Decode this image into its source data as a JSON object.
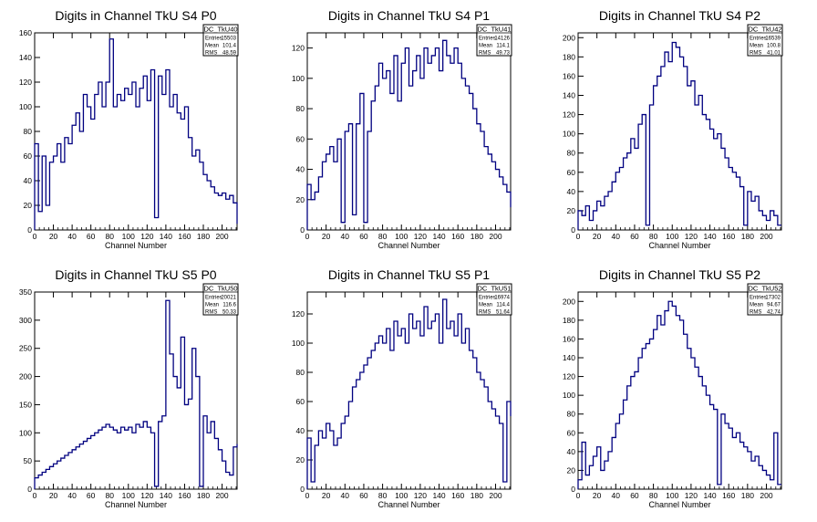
{
  "page": {
    "background": "#ffffff",
    "line_color": "#000080"
  },
  "chart_data": [
    {
      "type": "line",
      "title": "Digits in Channel TkU S4 P0",
      "xlabel": "Channel Number",
      "ylabel": "",
      "xlim": [
        0,
        216
      ],
      "ylim": [
        0,
        160
      ],
      "xticks": [
        0,
        20,
        40,
        60,
        80,
        100,
        120,
        140,
        160,
        180,
        200
      ],
      "yticks": [
        0,
        20,
        40,
        60,
        80,
        100,
        120,
        140,
        160
      ],
      "stats": {
        "name": "DC_TkU40",
        "entries_label": "Entries",
        "entries": "15503",
        "mean_label": "Mean",
        "mean": "101.4",
        "rms_label": "RMS",
        "rms": "48.59"
      },
      "x": [
        0,
        4,
        8,
        12,
        16,
        20,
        24,
        28,
        32,
        36,
        40,
        44,
        48,
        52,
        56,
        60,
        64,
        68,
        72,
        76,
        80,
        84,
        88,
        92,
        96,
        100,
        104,
        108,
        112,
        116,
        120,
        124,
        128,
        132,
        136,
        140,
        144,
        148,
        152,
        156,
        160,
        164,
        168,
        172,
        176,
        180,
        184,
        188,
        192,
        196,
        200,
        204,
        208,
        212,
        216
      ],
      "y": [
        70,
        15,
        60,
        20,
        55,
        60,
        70,
        55,
        75,
        70,
        85,
        95,
        80,
        110,
        100,
        90,
        110,
        120,
        100,
        120,
        155,
        100,
        110,
        105,
        115,
        110,
        120,
        100,
        115,
        125,
        105,
        130,
        10,
        125,
        110,
        130,
        100,
        110,
        95,
        90,
        100,
        75,
        60,
        65,
        55,
        45,
        40,
        35,
        30,
        28,
        30,
        25,
        28,
        22,
        5
      ]
    },
    {
      "type": "line",
      "title": "Digits in Channel TkU S4 P1",
      "xlabel": "Channel Number",
      "ylabel": "",
      "xlim": [
        0,
        216
      ],
      "ylim": [
        0,
        130
      ],
      "xticks": [
        0,
        20,
        40,
        60,
        80,
        100,
        120,
        140,
        160,
        180,
        200
      ],
      "yticks": [
        0,
        20,
        40,
        60,
        80,
        100,
        120
      ],
      "stats": {
        "name": "DC_TkU41",
        "entries_label": "Entries",
        "entries": "14126",
        "mean_label": "Mean",
        "mean": "114.1",
        "rms_label": "RMS",
        "rms": "49.73"
      },
      "x": [
        0,
        4,
        8,
        12,
        16,
        20,
        24,
        28,
        32,
        36,
        40,
        44,
        48,
        52,
        56,
        60,
        64,
        68,
        72,
        76,
        80,
        84,
        88,
        92,
        96,
        100,
        104,
        108,
        112,
        116,
        120,
        124,
        128,
        132,
        136,
        140,
        144,
        148,
        152,
        156,
        160,
        164,
        168,
        172,
        176,
        180,
        184,
        188,
        192,
        196,
        200,
        204,
        208,
        212,
        216
      ],
      "y": [
        30,
        20,
        25,
        35,
        45,
        50,
        55,
        45,
        60,
        5,
        65,
        70,
        10,
        70,
        90,
        5,
        65,
        85,
        95,
        110,
        100,
        105,
        90,
        115,
        85,
        110,
        120,
        95,
        105,
        115,
        100,
        120,
        110,
        115,
        120,
        105,
        125,
        115,
        110,
        120,
        110,
        100,
        95,
        90,
        80,
        70,
        65,
        55,
        50,
        45,
        40,
        35,
        30,
        25,
        15
      ]
    },
    {
      "type": "line",
      "title": "Digits in Channel TkU S4 P2",
      "xlabel": "Channel Number",
      "ylabel": "",
      "xlim": [
        0,
        216
      ],
      "ylim": [
        0,
        205
      ],
      "xticks": [
        0,
        20,
        40,
        60,
        80,
        100,
        120,
        140,
        160,
        180,
        200
      ],
      "yticks": [
        0,
        20,
        40,
        60,
        80,
        100,
        120,
        140,
        160,
        180,
        200
      ],
      "stats": {
        "name": "DC_TkU42",
        "entries_label": "Entries",
        "entries": "16539",
        "mean_label": "Mean",
        "mean": "100.8",
        "rms_label": "RMS",
        "rms": "41.01"
      },
      "x": [
        0,
        4,
        8,
        12,
        16,
        20,
        24,
        28,
        32,
        36,
        40,
        44,
        48,
        52,
        56,
        60,
        64,
        68,
        72,
        76,
        80,
        84,
        88,
        92,
        96,
        100,
        104,
        108,
        112,
        116,
        120,
        124,
        128,
        132,
        136,
        140,
        144,
        148,
        152,
        156,
        160,
        164,
        168,
        172,
        176,
        180,
        184,
        188,
        192,
        196,
        200,
        204,
        208,
        212
      ],
      "y": [
        20,
        15,
        25,
        10,
        20,
        30,
        25,
        35,
        40,
        50,
        60,
        65,
        75,
        80,
        95,
        85,
        110,
        120,
        5,
        130,
        150,
        160,
        170,
        185,
        175,
        195,
        190,
        180,
        170,
        150,
        155,
        130,
        140,
        120,
        115,
        105,
        95,
        100,
        85,
        75,
        65,
        60,
        55,
        45,
        5,
        40,
        30,
        35,
        20,
        15,
        10,
        20,
        15,
        5
      ]
    },
    {
      "type": "line",
      "title": "Digits in Channel TkU S5 P0",
      "xlabel": "Channel Number",
      "ylabel": "",
      "xlim": [
        0,
        216
      ],
      "ylim": [
        0,
        350
      ],
      "xticks": [
        0,
        20,
        40,
        60,
        80,
        100,
        120,
        140,
        160,
        180,
        200
      ],
      "yticks": [
        0,
        50,
        100,
        150,
        200,
        250,
        300,
        350
      ],
      "stats": {
        "name": "DC_TkU50",
        "entries_label": "Entries",
        "entries": "20021",
        "mean_label": "Mean",
        "mean": "116.6",
        "rms_label": "RMS",
        "rms": "50.33"
      },
      "x": [
        0,
        4,
        8,
        12,
        16,
        20,
        24,
        28,
        32,
        36,
        40,
        44,
        48,
        52,
        56,
        60,
        64,
        68,
        72,
        76,
        80,
        84,
        88,
        92,
        96,
        100,
        104,
        108,
        112,
        116,
        120,
        124,
        128,
        132,
        136,
        140,
        144,
        148,
        152,
        156,
        160,
        164,
        168,
        172,
        176,
        180,
        184,
        188,
        192,
        196,
        200,
        204,
        208,
        212,
        216
      ],
      "y": [
        20,
        25,
        30,
        35,
        40,
        45,
        50,
        55,
        60,
        65,
        70,
        75,
        80,
        85,
        90,
        95,
        100,
        105,
        110,
        115,
        110,
        105,
        100,
        110,
        105,
        110,
        100,
        115,
        110,
        120,
        110,
        100,
        5,
        120,
        130,
        335,
        240,
        200,
        180,
        270,
        150,
        160,
        250,
        200,
        5,
        130,
        100,
        120,
        90,
        70,
        50,
        30,
        25,
        75,
        80
      ]
    },
    {
      "type": "line",
      "title": "Digits in Channel TkU S5 P1",
      "xlabel": "Channel Number",
      "ylabel": "",
      "xlim": [
        0,
        216
      ],
      "ylim": [
        0,
        135
      ],
      "xticks": [
        0,
        20,
        40,
        60,
        80,
        100,
        120,
        140,
        160,
        180,
        200
      ],
      "yticks": [
        0,
        20,
        40,
        60,
        80,
        100,
        120
      ],
      "stats": {
        "name": "DC_TkU51",
        "entries_label": "Entries",
        "entries": "16974",
        "mean_label": "Mean",
        "mean": "114.4",
        "rms_label": "RMS",
        "rms": "51.64"
      },
      "x": [
        0,
        4,
        8,
        12,
        16,
        20,
        24,
        28,
        32,
        36,
        40,
        44,
        48,
        52,
        56,
        60,
        64,
        68,
        72,
        76,
        80,
        84,
        88,
        92,
        96,
        100,
        104,
        108,
        112,
        116,
        120,
        124,
        128,
        132,
        136,
        140,
        144,
        148,
        152,
        156,
        160,
        164,
        168,
        172,
        176,
        180,
        184,
        188,
        192,
        196,
        200,
        204,
        208,
        212,
        216
      ],
      "y": [
        35,
        5,
        30,
        40,
        35,
        45,
        40,
        30,
        35,
        45,
        50,
        60,
        70,
        75,
        80,
        85,
        90,
        95,
        100,
        105,
        100,
        110,
        95,
        115,
        105,
        110,
        100,
        120,
        110,
        115,
        105,
        125,
        110,
        115,
        120,
        100,
        130,
        110,
        115,
        105,
        120,
        100,
        110,
        95,
        90,
        80,
        75,
        70,
        60,
        55,
        50,
        45,
        5,
        60,
        50
      ]
    },
    {
      "type": "line",
      "title": "Digits in Channel TkU S5 P2",
      "xlabel": "Channel Number",
      "ylabel": "",
      "xlim": [
        0,
        216
      ],
      "ylim": [
        0,
        210
      ],
      "xticks": [
        0,
        20,
        40,
        60,
        80,
        100,
        120,
        140,
        160,
        180,
        200
      ],
      "yticks": [
        0,
        20,
        40,
        60,
        80,
        100,
        120,
        140,
        160,
        180,
        200
      ],
      "stats": {
        "name": "DC_TkU52",
        "entries_label": "Entries",
        "entries": "17302",
        "mean_label": "Mean",
        "mean": "94.67",
        "rms_label": "RMS",
        "rms": "42.74"
      },
      "x": [
        0,
        4,
        8,
        12,
        16,
        20,
        24,
        28,
        32,
        36,
        40,
        44,
        48,
        52,
        56,
        60,
        64,
        68,
        72,
        76,
        80,
        84,
        88,
        92,
        96,
        100,
        104,
        108,
        112,
        116,
        120,
        124,
        128,
        132,
        136,
        140,
        144,
        148,
        152,
        156,
        160,
        164,
        168,
        172,
        176,
        180,
        184,
        188,
        192,
        196,
        200,
        204,
        208,
        212
      ],
      "y": [
        10,
        50,
        15,
        25,
        35,
        45,
        20,
        30,
        40,
        55,
        70,
        80,
        95,
        110,
        120,
        125,
        140,
        150,
        155,
        160,
        170,
        185,
        175,
        190,
        200,
        195,
        185,
        180,
        165,
        150,
        140,
        130,
        120,
        110,
        100,
        90,
        85,
        5,
        80,
        70,
        65,
        55,
        60,
        50,
        45,
        40,
        30,
        35,
        25,
        20,
        15,
        10,
        60,
        5
      ]
    }
  ]
}
